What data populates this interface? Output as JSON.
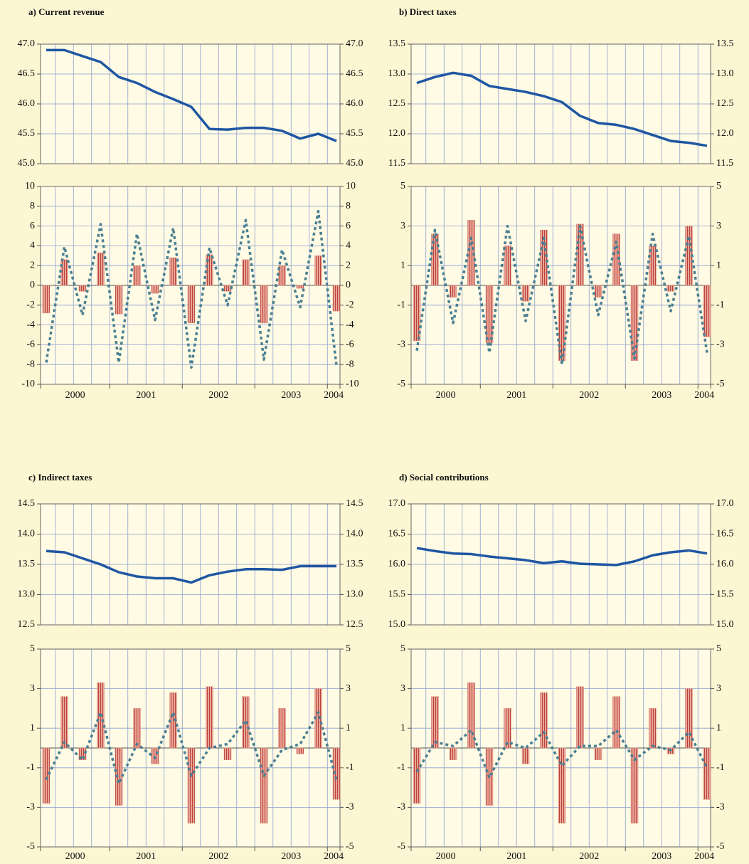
{
  "chart_data": [
    {
      "type": "combo",
      "title": "a) Current revenue",
      "xlabels": [
        "2000",
        "2001",
        "2002",
        "2003",
        "2004"
      ],
      "top": {
        "type": "line",
        "ylim": [
          45,
          47
        ],
        "yticks": [
          {
            "value": 45,
            "label": "45.0"
          },
          45.5,
          {
            "value": 46,
            "label": "46.0"
          },
          46.5,
          {
            "value": 47,
            "label": "47.0"
          }
        ],
        "series": [
          {
            "type": "line",
            "color": "#1f56a3",
            "values": [
              46.9,
              46.9,
              46.8,
              46.7,
              46.45,
              46.35,
              46.2,
              46.08,
              45.95,
              45.58,
              45.57,
              45.6,
              45.6,
              45.55,
              45.42,
              45.5,
              45.38
            ]
          }
        ]
      },
      "bottom": {
        "type": "bar",
        "ylim": [
          -10,
          10
        ],
        "yticks": [
          -10,
          -8,
          -6,
          -4,
          -2,
          0,
          2,
          4,
          6,
          8,
          10
        ],
        "series": [
          {
            "type": "bar",
            "color": "#d98b80",
            "values": [
              -2.8,
              2.6,
              -0.6,
              3.3,
              -2.9,
              2.0,
              -0.8,
              2.8,
              -3.8,
              3.1,
              -0.6,
              2.6,
              -3.8,
              2.0,
              -0.3,
              3.0,
              -2.6
            ]
          },
          {
            "type": "line",
            "dashed": true,
            "color": "#4a7f92",
            "values": [
              -7.8,
              3.9,
              -3.0,
              6.2,
              -7.8,
              5.2,
              -3.5,
              5.8,
              -8.3,
              3.8,
              -2.0,
              6.6,
              -7.5,
              3.6,
              -2.2,
              7.5,
              -8.1
            ]
          }
        ]
      }
    },
    {
      "type": "combo",
      "title": "b) Direct taxes",
      "xlabels": [
        "2000",
        "2001",
        "2002",
        "2003",
        "2004"
      ],
      "top": {
        "type": "line",
        "ylim": [
          11.5,
          13.5
        ],
        "yticks": [
          11.5,
          {
            "value": 12,
            "label": "12.0"
          },
          12.5,
          {
            "value": 13,
            "label": "13.0"
          },
          13.5
        ],
        "series": [
          {
            "type": "line",
            "color": "#1f56a3",
            "values": [
              12.85,
              12.95,
              13.02,
              12.97,
              12.8,
              12.75,
              12.7,
              12.63,
              12.53,
              12.3,
              12.18,
              12.15,
              12.08,
              11.98,
              11.88,
              11.85,
              11.8
            ]
          }
        ]
      },
      "bottom": {
        "type": "bar",
        "ylim": [
          -5,
          5
        ],
        "yticks": [
          -5,
          -3,
          -1,
          1,
          3,
          5
        ],
        "series": [
          {
            "type": "bar",
            "color": "#d98b80",
            "values": [
              -2.8,
              2.6,
              -0.6,
              3.3,
              -2.9,
              2.0,
              -0.8,
              2.8,
              -3.8,
              3.1,
              -0.6,
              2.6,
              -3.8,
              2.0,
              -0.3,
              3.0,
              -2.6
            ]
          },
          {
            "type": "line",
            "dashed": true,
            "color": "#4a7f92",
            "values": [
              -3.3,
              2.8,
              -1.9,
              2.4,
              -3.4,
              3.0,
              -1.8,
              2.4,
              -4.0,
              3.0,
              -1.5,
              2.2,
              -3.7,
              2.6,
              -1.3,
              2.5,
              -3.4
            ]
          }
        ]
      }
    },
    {
      "type": "combo",
      "title": "c) Indirect taxes",
      "xlabels": [
        "2000",
        "2001",
        "2002",
        "2003",
        "2004"
      ],
      "top": {
        "type": "line",
        "ylim": [
          12.5,
          14.5
        ],
        "yticks": [
          12.5,
          {
            "value": 13,
            "label": "13.0"
          },
          13.5,
          {
            "value": 14,
            "label": "14.0"
          },
          14.5
        ],
        "series": [
          {
            "type": "line",
            "color": "#1f56a3",
            "values": [
              13.72,
              13.7,
              13.6,
              13.5,
              13.37,
              13.3,
              13.27,
              13.27,
              13.2,
              13.32,
              13.38,
              13.42,
              13.42,
              13.41,
              13.47,
              13.47,
              13.47
            ]
          }
        ]
      },
      "bottom": {
        "type": "bar",
        "ylim": [
          -5,
          5
        ],
        "yticks": [
          -5,
          -3,
          -1,
          1,
          3,
          5
        ],
        "series": [
          {
            "type": "bar",
            "color": "#d98b80",
            "values": [
              -2.8,
              2.6,
              -0.6,
              3.3,
              -2.9,
              2.0,
              -0.8,
              2.8,
              -3.8,
              3.1,
              -0.6,
              2.6,
              -3.8,
              2.0,
              -0.3,
              3.0,
              -2.6
            ]
          },
          {
            "type": "line",
            "dashed": true,
            "color": "#4a7f92",
            "values": [
              -1.6,
              0.3,
              -0.6,
              1.8,
              -1.8,
              0.2,
              -0.5,
              1.8,
              -1.4,
              0.0,
              0.2,
              1.4,
              -1.4,
              -0.1,
              0.2,
              1.8,
              -1.6
            ]
          }
        ]
      }
    },
    {
      "type": "combo",
      "title": "d) Social contributions",
      "xlabels": [
        "2000",
        "2001",
        "2002",
        "2003",
        "2004"
      ],
      "top": {
        "type": "line",
        "ylim": [
          15,
          17
        ],
        "yticks": [
          {
            "value": 15,
            "label": "15.0"
          },
          15.5,
          {
            "value": 16,
            "label": "16.0"
          },
          16.5,
          {
            "value": 17,
            "label": "17.0"
          }
        ],
        "series": [
          {
            "type": "line",
            "color": "#1f56a3",
            "values": [
              16.27,
              16.22,
              16.18,
              16.17,
              16.13,
              16.1,
              16.07,
              16.02,
              16.05,
              16.01,
              16.0,
              15.99,
              16.05,
              16.15,
              16.2,
              16.23,
              16.18
            ]
          }
        ]
      },
      "bottom": {
        "type": "bar",
        "ylim": [
          -5,
          5
        ],
        "yticks": [
          -5,
          -3,
          -1,
          1,
          3,
          5
        ],
        "series": [
          {
            "type": "bar",
            "color": "#d98b80",
            "values": [
              -2.8,
              2.6,
              -0.6,
              3.3,
              -2.9,
              2.0,
              -0.8,
              2.8,
              -3.8,
              3.1,
              -0.6,
              2.6,
              -3.8,
              2.0,
              -0.3,
              3.0,
              -2.6
            ]
          },
          {
            "type": "line",
            "dashed": true,
            "color": "#4a7f92",
            "values": [
              -1.2,
              0.3,
              0.1,
              0.9,
              -1.5,
              0.3,
              0.0,
              0.8,
              -0.9,
              0.1,
              0.1,
              0.9,
              -0.6,
              0.1,
              -0.1,
              0.8,
              -1.0
            ]
          }
        ]
      }
    }
  ]
}
